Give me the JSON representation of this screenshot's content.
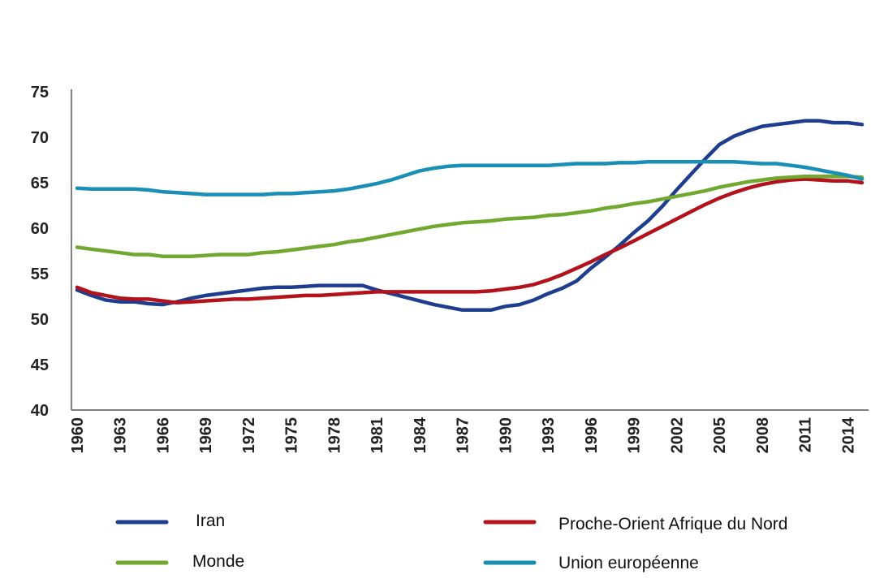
{
  "chart_data": {
    "type": "line",
    "title": "",
    "xlabel": "",
    "ylabel": "",
    "ylim": [
      40,
      75
    ],
    "yticks": [
      "75",
      "70",
      "65",
      "60",
      "55",
      "50",
      "45",
      "40"
    ],
    "xticks": [
      "1960",
      "1963",
      "1966",
      "1969",
      "1972",
      "1975",
      "1978",
      "1981",
      "1984",
      "1987",
      "1990",
      "1993",
      "1996",
      "1999",
      "2002",
      "2005",
      "2008",
      "2011",
      "2014"
    ],
    "grid": false,
    "legend_position": "bottom",
    "x": [
      1960,
      1961,
      1962,
      1963,
      1964,
      1965,
      1966,
      1967,
      1968,
      1969,
      1970,
      1971,
      1972,
      1973,
      1974,
      1975,
      1976,
      1977,
      1978,
      1979,
      1980,
      1981,
      1982,
      1983,
      1984,
      1985,
      1986,
      1987,
      1988,
      1989,
      1990,
      1991,
      1992,
      1993,
      1994,
      1995,
      1996,
      1997,
      1998,
      1999,
      2000,
      2001,
      2002,
      2003,
      2004,
      2005,
      2006,
      2007,
      2008,
      2009,
      2010,
      2011,
      2012,
      2013,
      2014,
      2015
    ],
    "series": [
      {
        "name": "Iran",
        "color": "#1f3d8f",
        "values": [
          53.2,
          52.6,
          52.1,
          51.9,
          51.9,
          51.7,
          51.6,
          51.9,
          52.3,
          52.6,
          52.8,
          53.0,
          53.2,
          53.4,
          53.5,
          53.5,
          53.6,
          53.7,
          53.7,
          53.7,
          53.7,
          53.2,
          52.8,
          52.4,
          52.0,
          51.6,
          51.3,
          51.0,
          51.0,
          51.0,
          51.4,
          51.6,
          52.1,
          52.8,
          53.4,
          54.2,
          55.6,
          56.8,
          58.1,
          59.5,
          60.8,
          62.4,
          64.2,
          65.9,
          67.6,
          69.2,
          70.1,
          70.7,
          71.2,
          71.4,
          71.6,
          71.8,
          71.8,
          71.6,
          71.6,
          71.4
        ]
      },
      {
        "name": "Proche-Orient Afrique du Nord",
        "color": "#b3121b",
        "values": [
          53.5,
          52.9,
          52.6,
          52.3,
          52.2,
          52.2,
          52.0,
          51.8,
          51.9,
          52.0,
          52.1,
          52.2,
          52.2,
          52.3,
          52.4,
          52.5,
          52.6,
          52.6,
          52.7,
          52.8,
          52.9,
          53.0,
          53.0,
          53.0,
          53.0,
          53.0,
          53.0,
          53.0,
          53.0,
          53.1,
          53.3,
          53.5,
          53.8,
          54.3,
          54.9,
          55.6,
          56.3,
          57.1,
          57.8,
          58.6,
          59.4,
          60.2,
          61.0,
          61.8,
          62.6,
          63.3,
          63.9,
          64.4,
          64.8,
          65.1,
          65.3,
          65.4,
          65.3,
          65.2,
          65.2,
          65.0
        ]
      },
      {
        "name": "Monde",
        "color": "#70a830",
        "values": [
          57.9,
          57.7,
          57.5,
          57.3,
          57.1,
          57.1,
          56.9,
          56.9,
          56.9,
          57.0,
          57.1,
          57.1,
          57.1,
          57.3,
          57.4,
          57.6,
          57.8,
          58.0,
          58.2,
          58.5,
          58.7,
          59.0,
          59.3,
          59.6,
          59.9,
          60.2,
          60.4,
          60.6,
          60.7,
          60.8,
          61.0,
          61.1,
          61.2,
          61.4,
          61.5,
          61.7,
          61.9,
          62.2,
          62.4,
          62.7,
          62.9,
          63.2,
          63.5,
          63.8,
          64.1,
          64.5,
          64.8,
          65.1,
          65.3,
          65.5,
          65.6,
          65.7,
          65.7,
          65.7,
          65.7,
          65.6
        ]
      },
      {
        "name": "Union européenne",
        "color": "#1a8fb5",
        "values": [
          64.4,
          64.3,
          64.3,
          64.3,
          64.3,
          64.2,
          64.0,
          63.9,
          63.8,
          63.7,
          63.7,
          63.7,
          63.7,
          63.7,
          63.8,
          63.8,
          63.9,
          64.0,
          64.1,
          64.3,
          64.6,
          64.9,
          65.3,
          65.8,
          66.3,
          66.6,
          66.8,
          66.9,
          66.9,
          66.9,
          66.9,
          66.9,
          66.9,
          66.9,
          67.0,
          67.1,
          67.1,
          67.1,
          67.2,
          67.2,
          67.3,
          67.3,
          67.3,
          67.3,
          67.3,
          67.3,
          67.3,
          67.2,
          67.1,
          67.1,
          66.9,
          66.7,
          66.4,
          66.1,
          65.8,
          65.4
        ]
      }
    ]
  }
}
